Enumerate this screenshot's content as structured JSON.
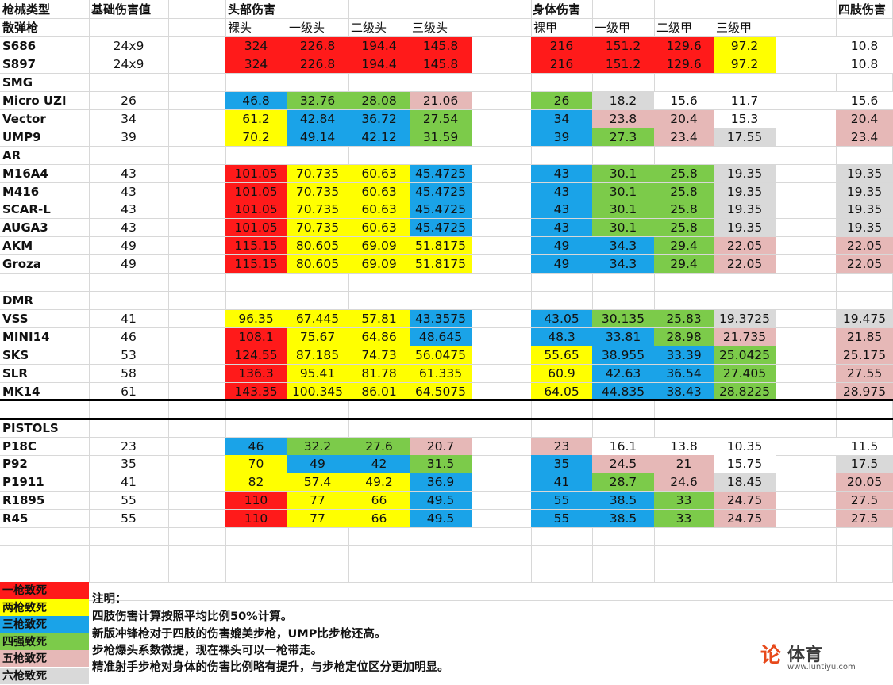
{
  "colors": {
    "one_shot": "#ff1a1a",
    "two_shot": "#ffff00",
    "three_shot": "#1aa3e8",
    "four_shot": "#7ccb4a",
    "five_shot": "#e6b8b7",
    "six_shot": "#d9d9d9",
    "none": "#ffffff"
  },
  "headers": {
    "weapon_type": "枪械类型",
    "base_damage": "基础伤害值",
    "head_damage": "头部伤害",
    "body_damage": "身体伤害",
    "limb_damage": "四肢伤害"
  },
  "subheaders": {
    "bare_head": "裸头",
    "head_lv1": "一级头",
    "head_lv2": "二级头",
    "head_lv3": "三级头",
    "bare_body": "裸甲",
    "armor_lv1": "一级甲",
    "armor_lv2": "二级甲",
    "armor_lv3": "三级甲"
  },
  "sections": [
    {
      "label": "散弹枪",
      "row": 1
    },
    {
      "label": "SMG",
      "row": 4
    },
    {
      "label": "AR",
      "row": 8
    },
    {
      "label": "DMR",
      "row": 16
    },
    {
      "label": "PISTOLS",
      "row": 23
    }
  ],
  "weapons": [
    {
      "row": 2,
      "name": "S686",
      "base": "24x9",
      "vals": [
        "324",
        "226.8",
        "194.4",
        "145.8",
        "216",
        "151.2",
        "129.6",
        "97.2",
        "10.8"
      ],
      "cols": [
        "one_shot",
        "one_shot",
        "one_shot",
        "one_shot",
        "one_shot",
        "one_shot",
        "one_shot",
        "two_shot",
        "none"
      ]
    },
    {
      "row": 3,
      "name": "S897",
      "base": "24x9",
      "vals": [
        "324",
        "226.8",
        "194.4",
        "145.8",
        "216",
        "151.2",
        "129.6",
        "97.2",
        "10.8"
      ],
      "cols": [
        "one_shot",
        "one_shot",
        "one_shot",
        "one_shot",
        "one_shot",
        "one_shot",
        "one_shot",
        "two_shot",
        "none"
      ]
    },
    {
      "row": 5,
      "name": "Micro UZI",
      "base": "26",
      "vals": [
        "46.8",
        "32.76",
        "28.08",
        "21.06",
        "26",
        "18.2",
        "15.6",
        "11.7",
        "15.6"
      ],
      "cols": [
        "three_shot",
        "four_shot",
        "four_shot",
        "five_shot",
        "four_shot",
        "six_shot",
        "none",
        "none",
        "none"
      ]
    },
    {
      "row": 6,
      "name": "Vector",
      "base": "34",
      "vals": [
        "61.2",
        "42.84",
        "36.72",
        "27.54",
        "34",
        "23.8",
        "20.4",
        "15.3",
        "20.4"
      ],
      "cols": [
        "two_shot",
        "three_shot",
        "three_shot",
        "four_shot",
        "three_shot",
        "five_shot",
        "five_shot",
        "none",
        "five_shot"
      ]
    },
    {
      "row": 7,
      "name": "UMP9",
      "base": "39",
      "vals": [
        "70.2",
        "49.14",
        "42.12",
        "31.59",
        "39",
        "27.3",
        "23.4",
        "17.55",
        "23.4"
      ],
      "cols": [
        "two_shot",
        "three_shot",
        "three_shot",
        "four_shot",
        "three_shot",
        "four_shot",
        "five_shot",
        "six_shot",
        "five_shot"
      ]
    },
    {
      "row": 9,
      "name": "M16A4",
      "base": "43",
      "vals": [
        "101.05",
        "70.735",
        "60.63",
        "45.4725",
        "43",
        "30.1",
        "25.8",
        "19.35",
        "19.35"
      ],
      "cols": [
        "one_shot",
        "two_shot",
        "two_shot",
        "three_shot",
        "three_shot",
        "four_shot",
        "four_shot",
        "six_shot",
        "six_shot"
      ]
    },
    {
      "row": 10,
      "name": "M416",
      "base": "43",
      "vals": [
        "101.05",
        "70.735",
        "60.63",
        "45.4725",
        "43",
        "30.1",
        "25.8",
        "19.35",
        "19.35"
      ],
      "cols": [
        "one_shot",
        "two_shot",
        "two_shot",
        "three_shot",
        "three_shot",
        "four_shot",
        "four_shot",
        "six_shot",
        "six_shot"
      ]
    },
    {
      "row": 11,
      "name": "SCAR-L",
      "base": "43",
      "vals": [
        "101.05",
        "70.735",
        "60.63",
        "45.4725",
        "43",
        "30.1",
        "25.8",
        "19.35",
        "19.35"
      ],
      "cols": [
        "one_shot",
        "two_shot",
        "two_shot",
        "three_shot",
        "three_shot",
        "four_shot",
        "four_shot",
        "six_shot",
        "six_shot"
      ]
    },
    {
      "row": 12,
      "name": "AUGA3",
      "base": "43",
      "vals": [
        "101.05",
        "70.735",
        "60.63",
        "45.4725",
        "43",
        "30.1",
        "25.8",
        "19.35",
        "19.35"
      ],
      "cols": [
        "one_shot",
        "two_shot",
        "two_shot",
        "three_shot",
        "three_shot",
        "four_shot",
        "four_shot",
        "six_shot",
        "six_shot"
      ]
    },
    {
      "row": 13,
      "name": "AKM",
      "base": "49",
      "vals": [
        "115.15",
        "80.605",
        "69.09",
        "51.8175",
        "49",
        "34.3",
        "29.4",
        "22.05",
        "22.05"
      ],
      "cols": [
        "one_shot",
        "two_shot",
        "two_shot",
        "two_shot",
        "three_shot",
        "three_shot",
        "four_shot",
        "five_shot",
        "five_shot"
      ]
    },
    {
      "row": 14,
      "name": "Groza",
      "base": "49",
      "vals": [
        "115.15",
        "80.605",
        "69.09",
        "51.8175",
        "49",
        "34.3",
        "29.4",
        "22.05",
        "22.05"
      ],
      "cols": [
        "one_shot",
        "two_shot",
        "two_shot",
        "two_shot",
        "three_shot",
        "three_shot",
        "four_shot",
        "five_shot",
        "five_shot"
      ]
    },
    {
      "row": 17,
      "name": "VSS",
      "base": "41",
      "vals": [
        "96.35",
        "67.445",
        "57.81",
        "43.3575",
        "43.05",
        "30.135",
        "25.83",
        "19.3725",
        "19.475"
      ],
      "cols": [
        "two_shot",
        "two_shot",
        "two_shot",
        "three_shot",
        "three_shot",
        "four_shot",
        "four_shot",
        "six_shot",
        "six_shot"
      ]
    },
    {
      "row": 18,
      "name": "MINI14",
      "base": "46",
      "vals": [
        "108.1",
        "75.67",
        "64.86",
        "48.645",
        "48.3",
        "33.81",
        "28.98",
        "21.735",
        "21.85"
      ],
      "cols": [
        "one_shot",
        "two_shot",
        "two_shot",
        "three_shot",
        "three_shot",
        "three_shot",
        "four_shot",
        "five_shot",
        "five_shot"
      ]
    },
    {
      "row": 19,
      "name": "SKS",
      "base": "53",
      "vals": [
        "124.55",
        "87.185",
        "74.73",
        "56.0475",
        "55.65",
        "38.955",
        "33.39",
        "25.0425",
        "25.175"
      ],
      "cols": [
        "one_shot",
        "two_shot",
        "two_shot",
        "two_shot",
        "two_shot",
        "three_shot",
        "three_shot",
        "four_shot",
        "five_shot"
      ]
    },
    {
      "row": 20,
      "name": "SLR",
      "base": "58",
      "vals": [
        "136.3",
        "95.41",
        "81.78",
        "61.335",
        "60.9",
        "42.63",
        "36.54",
        "27.405",
        "27.55"
      ],
      "cols": [
        "one_shot",
        "two_shot",
        "two_shot",
        "two_shot",
        "two_shot",
        "three_shot",
        "three_shot",
        "four_shot",
        "five_shot"
      ]
    },
    {
      "row": 21,
      "name": "MK14",
      "base": "61",
      "vals": [
        "143.35",
        "100.345",
        "86.01",
        "64.5075",
        "64.05",
        "44.835",
        "38.43",
        "28.8225",
        "28.975"
      ],
      "cols": [
        "one_shot",
        "two_shot",
        "two_shot",
        "two_shot",
        "two_shot",
        "three_shot",
        "three_shot",
        "four_shot",
        "five_shot"
      ]
    },
    {
      "row": 24,
      "name": "P18C",
      "base": "23",
      "vals": [
        "46",
        "32.2",
        "27.6",
        "20.7",
        "23",
        "16.1",
        "13.8",
        "10.35",
        "11.5"
      ],
      "cols": [
        "three_shot",
        "four_shot",
        "four_shot",
        "five_shot",
        "five_shot",
        "none",
        "none",
        "none",
        "none"
      ]
    },
    {
      "row": 25,
      "name": "P92",
      "base": "35",
      "vals": [
        "70",
        "49",
        "42",
        "31.5",
        "35",
        "24.5",
        "21",
        "15.75",
        "17.5"
      ],
      "cols": [
        "two_shot",
        "three_shot",
        "three_shot",
        "four_shot",
        "three_shot",
        "five_shot",
        "five_shot",
        "none",
        "six_shot"
      ]
    },
    {
      "row": 26,
      "name": "P1911",
      "base": "41",
      "vals": [
        "82",
        "57.4",
        "49.2",
        "36.9",
        "41",
        "28.7",
        "24.6",
        "18.45",
        "20.05"
      ],
      "cols": [
        "two_shot",
        "two_shot",
        "two_shot",
        "three_shot",
        "three_shot",
        "four_shot",
        "five_shot",
        "six_shot",
        "five_shot"
      ]
    },
    {
      "row": 27,
      "name": "R1895",
      "base": "55",
      "vals": [
        "110",
        "77",
        "66",
        "49.5",
        "55",
        "38.5",
        "33",
        "24.75",
        "27.5"
      ],
      "cols": [
        "one_shot",
        "two_shot",
        "two_shot",
        "three_shot",
        "three_shot",
        "three_shot",
        "four_shot",
        "five_shot",
        "five_shot"
      ]
    },
    {
      "row": 28,
      "name": "R45",
      "base": "55",
      "vals": [
        "110",
        "77",
        "66",
        "49.5",
        "55",
        "38.5",
        "33",
        "24.75",
        "27.5"
      ],
      "cols": [
        "one_shot",
        "two_shot",
        "two_shot",
        "three_shot",
        "three_shot",
        "three_shot",
        "four_shot",
        "five_shot",
        "five_shot"
      ]
    }
  ],
  "legend": [
    {
      "label": "一枪致死",
      "color": "one_shot"
    },
    {
      "label": "两枪致死",
      "color": "two_shot"
    },
    {
      "label": "三枪致死",
      "color": "three_shot"
    },
    {
      "label": "四强致死",
      "color": "four_shot"
    },
    {
      "label": "五枪致死",
      "color": "five_shot"
    },
    {
      "label": "六枪致死",
      "color": "six_shot"
    }
  ],
  "notes": {
    "title": "注明：",
    "lines": [
      "四肢伤害计算按照平均比例50%计算。",
      "新版冲锋枪对于四肢的伤害媲美步枪，UMP比步枪还高。",
      "步枪爆头系数微提，现在裸头可以一枪带走。",
      "精准射手步枪对身体的伤害比例略有提升，与步枪定位区分更加明显。"
    ]
  },
  "logo": {
    "mark": "论",
    "text": "体育",
    "url": "www.luntiyu.com"
  }
}
